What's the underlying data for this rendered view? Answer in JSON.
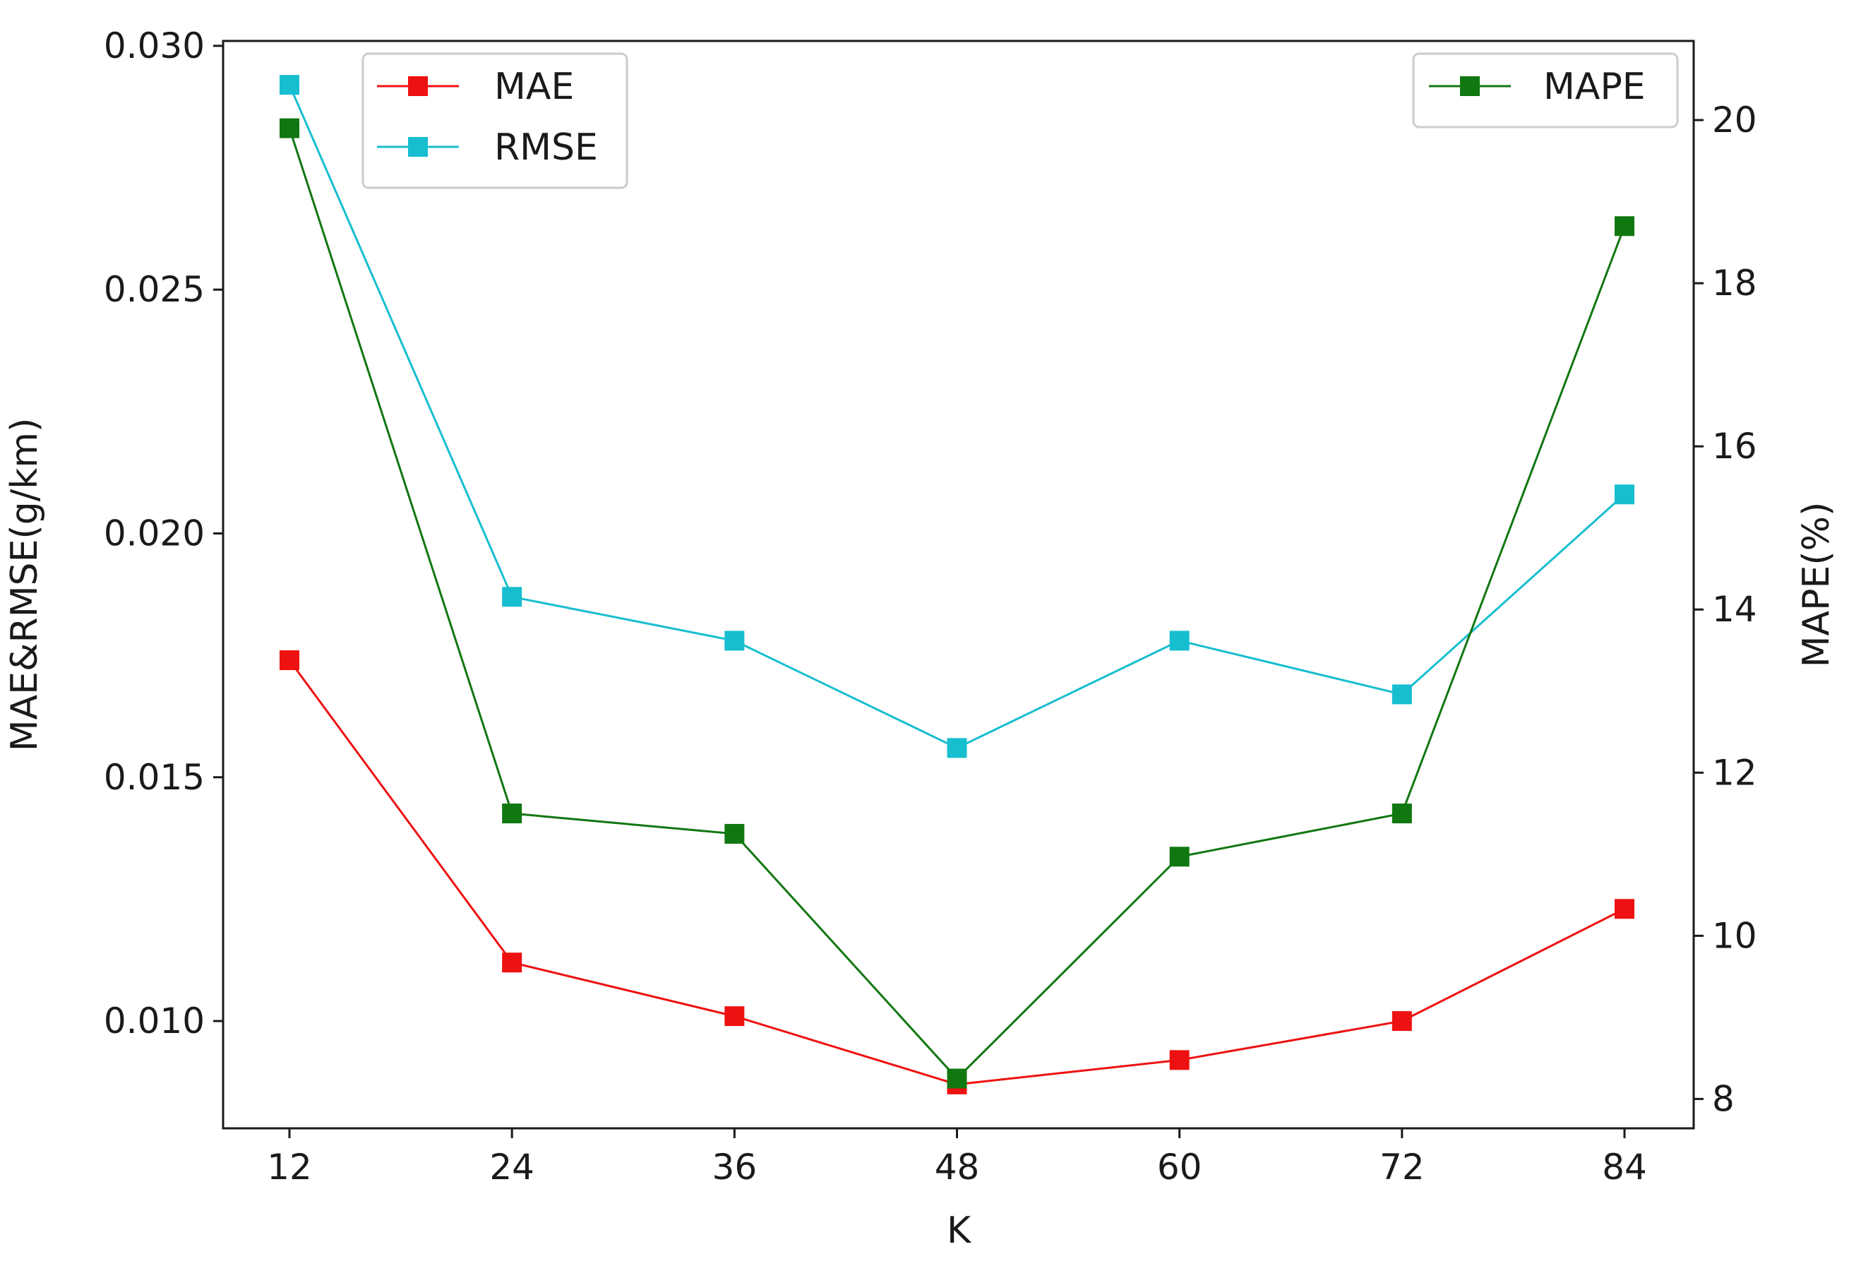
{
  "chart_data": {
    "type": "line",
    "title": "",
    "xlabel": "K",
    "ylabel_left": "MAE&RMSE(g/km)",
    "ylabel_right": "MAPE(%)",
    "x": [
      12,
      24,
      36,
      48,
      60,
      72,
      84
    ],
    "x_tick_labels": [
      "12",
      "24",
      "36",
      "48",
      "60",
      "72",
      "84"
    ],
    "ylim_left": [
      0.0078,
      0.0301
    ],
    "ylim_right": [
      7.64,
      20.97
    ],
    "yticks_left": [
      0.01,
      0.015,
      0.02,
      0.025,
      0.03
    ],
    "ytick_labels_left": [
      "0.010",
      "0.015",
      "0.020",
      "0.025",
      "0.030"
    ],
    "yticks_right": [
      8,
      10,
      12,
      14,
      16,
      18,
      20
    ],
    "ytick_labels_right": [
      "8",
      "10",
      "12",
      "14",
      "16",
      "18",
      "20"
    ],
    "grid": false,
    "series": [
      {
        "name": "MAE",
        "axis": "left",
        "color": "#ee1111",
        "values": [
          0.0174,
          0.0112,
          0.0101,
          0.0087,
          0.0092,
          0.01,
          0.0123
        ]
      },
      {
        "name": "RMSE",
        "axis": "left",
        "color": "#17becf",
        "values": [
          0.0292,
          0.0187,
          0.0178,
          0.0156,
          0.0178,
          0.0167,
          0.0208
        ]
      },
      {
        "name": "MAPE",
        "axis": "right",
        "color": "#117711",
        "values": [
          19.9,
          11.5,
          11.25,
          8.25,
          10.97,
          11.5,
          18.7
        ]
      }
    ],
    "legends": [
      {
        "position": "upper-left",
        "entries": [
          "MAE",
          "RMSE"
        ]
      },
      {
        "position": "upper-right",
        "entries": [
          "MAPE"
        ]
      }
    ]
  }
}
